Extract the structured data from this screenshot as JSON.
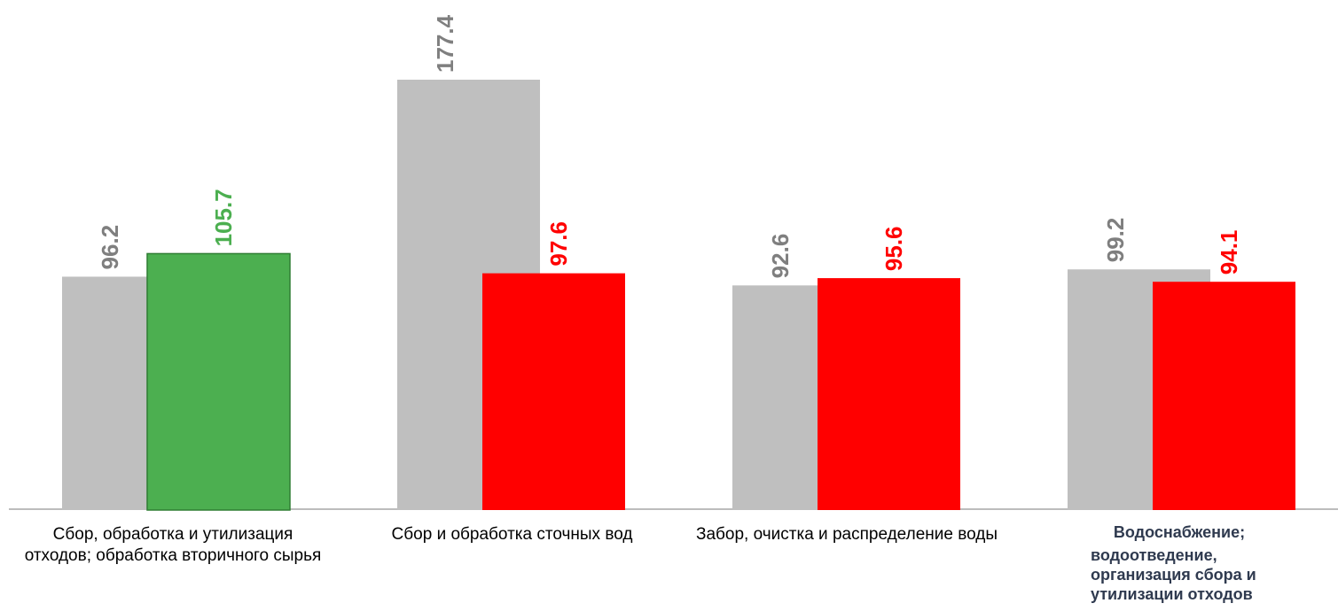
{
  "chart_data": {
    "type": "bar",
    "categories": [
      "Сбор, обработка и утилизация отходов; обработка вторичного сырья",
      "Сбор и обработка сточных вод",
      "Забор, очистка и распределение воды",
      "Водоснабжение; водоотведение, организация сбора и утилизации отходов"
    ],
    "category_labels": {
      "c0": "Сбор, обработка и утилизация отходов; обработка вторичного сырья",
      "c1": "Сбор и обработка сточных вод",
      "c2": "Забор, очистка и распределение воды",
      "c3_line1": "Водоснабжение;",
      "c3_line2": "водоотведение, организация сбора и утилизации отходов"
    },
    "series": [
      {
        "values": [
          96.2,
          177.4,
          92.6,
          99.2
        ],
        "color": "#bfbfbf",
        "label_color": "#7f7f7f"
      },
      {
        "values": [
          105.7,
          97.6,
          95.6,
          94.1
        ],
        "colors": [
          "#4caf50",
          "#ff0000",
          "#ff0000",
          "#ff0000"
        ]
      }
    ],
    "ylim": [
      0,
      177.4
    ],
    "grid": false,
    "legend": "none",
    "data_labels": true
  }
}
